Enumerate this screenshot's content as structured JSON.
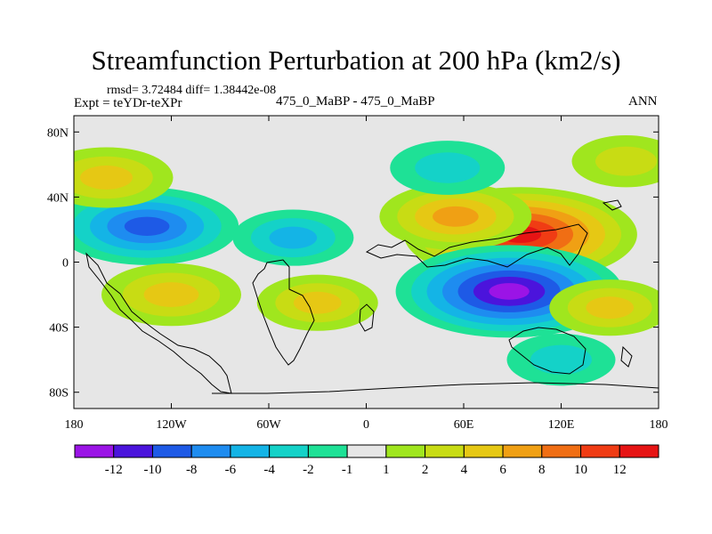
{
  "chart_data": {
    "type": "heatmap",
    "title": "Streamfunction Perturbation at 200 hPa (km2/s)",
    "stats": {
      "rmsd_line": "rmsd= 3.72484 diff= 1.38442e-08",
      "experiment": "Expt = teYDr-teXPr",
      "case_label": "475_0_MaBP - 475_0_MaBP",
      "season": "ANN"
    },
    "x_axis": {
      "range": [
        -180,
        180
      ],
      "ticks": [
        {
          "value": -180,
          "label": "180"
        },
        {
          "value": -120,
          "label": "120W"
        },
        {
          "value": -60,
          "label": "60W"
        },
        {
          "value": 0,
          "label": "0"
        },
        {
          "value": 60,
          "label": "60E"
        },
        {
          "value": 120,
          "label": "120E"
        },
        {
          "value": 180,
          "label": "180"
        }
      ]
    },
    "y_axis": {
      "range": [
        -90,
        90
      ],
      "ticks": [
        {
          "value": 80,
          "label": "80N"
        },
        {
          "value": 40,
          "label": "40N"
        },
        {
          "value": 0,
          "label": "0"
        },
        {
          "value": -40,
          "label": "40S"
        },
        {
          "value": -80,
          "label": "80S"
        }
      ]
    },
    "colorbar": {
      "levels": [
        "-12",
        "-10",
        "-8",
        "-6",
        "-4",
        "-2",
        "-1",
        "1",
        "2",
        "4",
        "6",
        "8",
        "10",
        "12"
      ],
      "colors": [
        "#9b14e6",
        "#4b14dc",
        "#1e5ae6",
        "#1e8cf0",
        "#14b4e6",
        "#14d2c8",
        "#1ee196",
        "#e6e6e6",
        "#a0e61e",
        "#c8dc14",
        "#e6c814",
        "#f0a014",
        "#f06e14",
        "#f03c14",
        "#e61414"
      ]
    },
    "features": [
      {
        "name": "positive-anomaly-north-indian",
        "lon": 95,
        "lat": 17,
        "peak": 13
      },
      {
        "name": "positive-anomaly-east-asia",
        "lon": 55,
        "lat": 28,
        "peak": 6.5
      },
      {
        "name": "negative-anomaly-south-indian",
        "lon": 88,
        "lat": -18,
        "peak": -12.5
      },
      {
        "name": "negative-anomaly-central-pacific",
        "lon": -135,
        "lat": 22,
        "peak": -9
      },
      {
        "name": "negative-anomaly-north-atlantic",
        "lon": -45,
        "lat": 15,
        "peak": -4
      },
      {
        "name": "negative-anomaly-north-pacific-high",
        "lon": 50,
        "lat": 58,
        "peak": -3.5
      },
      {
        "name": "positive-anomaly-south-pacific",
        "lon": -120,
        "lat": -20,
        "peak": 5.5
      },
      {
        "name": "positive-anomaly-south-atlantic",
        "lon": -30,
        "lat": -25,
        "peak": 4
      },
      {
        "name": "positive-anomaly-north-pacific-west",
        "lon": -160,
        "lat": 52,
        "peak": 5
      },
      {
        "name": "positive-anomaly-south-pacific-east",
        "lon": 150,
        "lat": -28,
        "peak": 4
      },
      {
        "name": "negative-anomaly-southern-ocean",
        "lon": 120,
        "lat": -60,
        "peak": -3
      },
      {
        "name": "positive-anomaly-arctic",
        "lon": 160,
        "lat": 62,
        "peak": 3
      }
    ]
  }
}
